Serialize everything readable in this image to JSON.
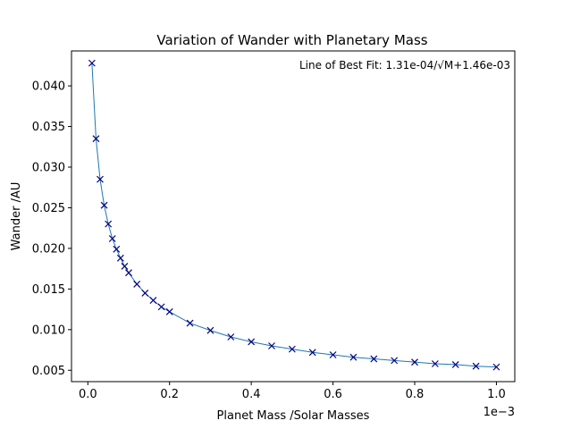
{
  "chart_data": {
    "type": "line",
    "title": "Variation of Wander with Planetary Mass",
    "xlabel": "Planet Mass /Solar Masses",
    "ylabel": "Wander /AU",
    "x_offset_label": "1e−3",
    "annotation": "Line of Best Fit: 1.31e-04/√M+1.46e-03",
    "xlim": [
      -0.04,
      1.045
    ],
    "ylim": [
      0.0036,
      0.0443
    ],
    "x_ticks": [
      0.0,
      0.2,
      0.4,
      0.6,
      0.8,
      1.0
    ],
    "x_tick_labels": [
      "0.0",
      "0.2",
      "0.4",
      "0.6",
      "0.8",
      "1.0"
    ],
    "y_ticks": [
      0.005,
      0.01,
      0.015,
      0.02,
      0.025,
      0.03,
      0.035,
      0.04
    ],
    "y_tick_labels": [
      "0.005",
      "0.010",
      "0.015",
      "0.020",
      "0.025",
      "0.030",
      "0.035",
      "0.040"
    ],
    "grid": false,
    "colors": {
      "line": "#1f77b4",
      "marker": "#000080"
    },
    "series": [
      {
        "marker": "x",
        "x": [
          0.01,
          0.02,
          0.03,
          0.04,
          0.05,
          0.06,
          0.07,
          0.08,
          0.09,
          0.1,
          0.12,
          0.14,
          0.16,
          0.18,
          0.2,
          0.25,
          0.3,
          0.35,
          0.4,
          0.45,
          0.5,
          0.55,
          0.6,
          0.65,
          0.7,
          0.75,
          0.8,
          0.85,
          0.9,
          0.95,
          1.0
        ],
        "y": [
          0.0428,
          0.0335,
          0.0285,
          0.0253,
          0.023,
          0.0212,
          0.0199,
          0.0188,
          0.0178,
          0.017,
          0.0156,
          0.0145,
          0.0136,
          0.0128,
          0.0122,
          0.0108,
          0.0099,
          0.0091,
          0.0085,
          0.008,
          0.0076,
          0.0072,
          0.0069,
          0.0066,
          0.0064,
          0.0062,
          0.006,
          0.0058,
          0.0057,
          0.0055,
          0.0054
        ]
      }
    ]
  }
}
